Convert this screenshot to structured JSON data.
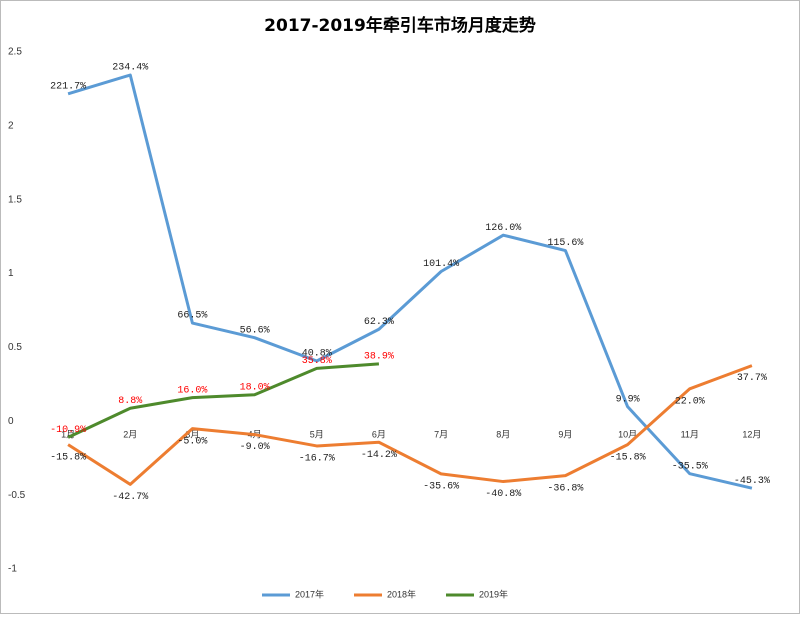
{
  "chart_data": {
    "type": "line",
    "title": "2017-2019年牵引车市场月度走势",
    "categories": [
      "1月",
      "2月",
      "3月",
      "4月",
      "5月",
      "6月",
      "7月",
      "8月",
      "9月",
      "10月",
      "11月",
      "12月"
    ],
    "series": [
      {
        "name": "2017年",
        "color": "#5b9bd5",
        "label_color": "#222222",
        "values": [
          2.217,
          2.344,
          0.665,
          0.566,
          0.408,
          0.623,
          1.014,
          1.26,
          1.156,
          0.099,
          -0.355,
          -0.453
        ],
        "value_labels": [
          "221.7%",
          "234.4%",
          "66.5%",
          "56.6%",
          "40.8%",
          "62.3%",
          "101.4%",
          "126.0%",
          "115.6%",
          "9.9%",
          "-35.5%",
          "-45.3%"
        ]
      },
      {
        "name": "2018年",
        "color": "#ed7d31",
        "label_color": "#222222",
        "values": [
          -0.158,
          -0.427,
          -0.05,
          -0.09,
          -0.167,
          -0.142,
          -0.356,
          -0.408,
          -0.368,
          -0.158,
          0.22,
          0.377
        ],
        "value_labels": [
          "-15.8%",
          "-42.7%",
          "-5.0%",
          "-9.0%",
          "-16.7%",
          "-14.2%",
          "-35.6%",
          "-40.8%",
          "-36.8%",
          "-15.8%",
          "22.0%",
          "37.7%"
        ]
      },
      {
        "name": "2019年",
        "color": "#4e8a2c",
        "label_color": "#ff0000",
        "values": [
          -0.109,
          0.088,
          0.16,
          0.18,
          0.358,
          0.389,
          null,
          null,
          null,
          null,
          null,
          null
        ],
        "value_labels": [
          "-10.9%",
          "8.8%",
          "16.0%",
          "18.0%",
          "35.8%",
          "38.9%",
          null,
          null,
          null,
          null,
          null,
          null
        ]
      }
    ],
    "ylim": [
      -1,
      2.5
    ],
    "yticks": [
      -1,
      -0.5,
      0,
      0.5,
      1,
      1.5,
      2,
      2.5
    ],
    "grid": false,
    "legend": "bottom"
  }
}
